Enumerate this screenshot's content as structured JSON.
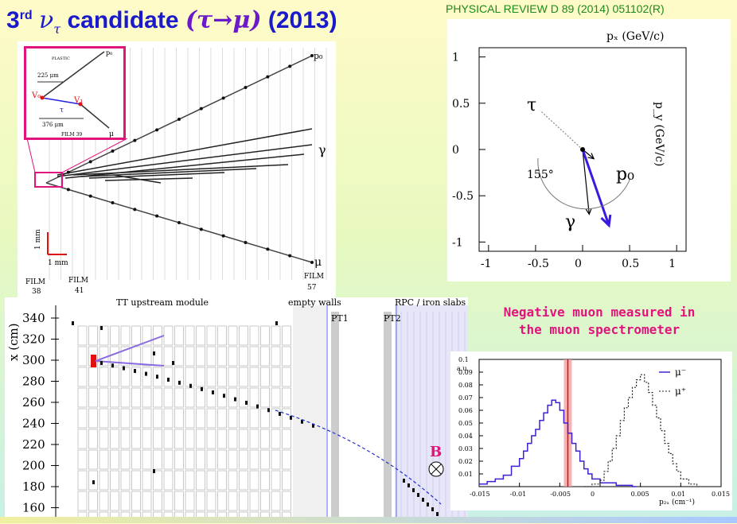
{
  "title": {
    "prefix": "3",
    "sup": "rd",
    "nu": "ν",
    "tau_sub": "τ",
    "word": " candidate ",
    "decay": "(τ→μ)",
    "year": " (2013)"
  },
  "reference": "PHYSICAL REVIEW D 89 (2014) 051102(R)",
  "event_display": {
    "labels": {
      "p0": "p₀",
      "gamma": "γ",
      "mu": "μ",
      "scale": "1 mm",
      "film38": [
        "FILM",
        "38"
      ],
      "film41": [
        "FILM",
        "41"
      ],
      "film57": [
        "FILM",
        "57"
      ]
    },
    "inset": {
      "plastic": "PLASTIC",
      "p0": "p₀",
      "v0": "V₀",
      "v1": "V₁",
      "tau": "τ",
      "d1": "225 μm",
      "d2": "376 μm",
      "mu": "μ",
      "film": "FILM 39"
    }
  },
  "momentum_plot": {
    "xlabel": "pₓ (GeV/c)",
    "ylabel": "p_y (GeV/c)",
    "xticks": [
      "-1",
      "-0.5",
      "0",
      "0.5",
      "1"
    ],
    "yticks": [
      "1",
      "0.5",
      "0",
      "-0.5",
      "-1"
    ],
    "labels": {
      "tau": "τ",
      "p0": "p₀",
      "gamma": "γ",
      "angle": "155°"
    },
    "colors": {
      "mu": "#3a1ae0"
    }
  },
  "detector": {
    "ylabel": "x (cm)",
    "yticks": [
      "340",
      "320",
      "300",
      "280",
      "260",
      "240",
      "220",
      "200",
      "180",
      "160"
    ],
    "regions": [
      "TT upstream module",
      "empty walls",
      "RPC / iron slabs"
    ],
    "markers": [
      "PT1",
      "PT2"
    ],
    "field": "B"
  },
  "spectrometer_caption": [
    "Negative muon measured in",
    "the muon spectrometer"
  ],
  "histogram": {
    "ylabel": "a.u.",
    "yticks": [
      "0.1",
      "0.09",
      "0.08",
      "0.07",
      "0.06",
      "0.05",
      "0.04",
      "0.03",
      "0.02",
      "0.01"
    ],
    "xticks": [
      "-0.015",
      "-0.01",
      "-0.005",
      "0",
      "0.005",
      "0.01",
      "0.015"
    ],
    "xlabel": "p₂ₓ (cm⁻¹)",
    "legend": [
      "μ⁻",
      "μ⁺"
    ]
  },
  "chart_data": [
    {
      "type": "line",
      "title": "",
      "xlabel": "pₓ (GeV/c)",
      "ylabel": "p_y (GeV/c)",
      "xlim": [
        -1.1,
        1.1
      ],
      "ylim": [
        -1.1,
        1.1
      ],
      "series": [
        {
          "name": "τ",
          "x": [
            0,
            -0.45
          ],
          "y": [
            0,
            0.42
          ]
        },
        {
          "name": "p₀",
          "x": [
            0,
            0.12
          ],
          "y": [
            0,
            -0.1
          ]
        },
        {
          "name": "γ",
          "x": [
            0,
            0.07
          ],
          "y": [
            0,
            -0.7
          ]
        },
        {
          "name": "μ",
          "x": [
            0,
            0.28
          ],
          "y": [
            0,
            -0.82
          ]
        }
      ],
      "annotations": [
        "155°"
      ]
    },
    {
      "type": "line",
      "xlabel": "p₂ₓ (cm⁻¹)",
      "ylabel": "a.u.",
      "xlim": [
        -0.015,
        0.015
      ],
      "ylim": [
        0,
        0.1
      ],
      "series": [
        {
          "name": "μ⁻",
          "x": [
            -0.015,
            -0.014,
            -0.013,
            -0.012,
            -0.011,
            -0.01,
            -0.0095,
            -0.009,
            -0.0085,
            -0.008,
            -0.0075,
            -0.007,
            -0.0065,
            -0.006,
            -0.0055,
            -0.005,
            -0.0045,
            -0.004,
            -0.0035,
            -0.003,
            -0.0025,
            -0.002,
            -0.0015,
            -0.001,
            0,
            0.002,
            0.004
          ],
          "y": [
            0.002,
            0.004,
            0.006,
            0.009,
            0.016,
            0.022,
            0.028,
            0.034,
            0.04,
            0.045,
            0.052,
            0.058,
            0.064,
            0.068,
            0.066,
            0.06,
            0.05,
            0.042,
            0.034,
            0.028,
            0.02,
            0.014,
            0.01,
            0.006,
            0.003,
            0.001,
            0.0
          ]
        },
        {
          "name": "μ⁺",
          "x": [
            -0.002,
            -0.001,
            0,
            0.0005,
            0.001,
            0.0015,
            0.002,
            0.0025,
            0.003,
            0.0035,
            0.004,
            0.0045,
            0.005,
            0.0055,
            0.006,
            0.0065,
            0.007,
            0.0075,
            0.008,
            0.0085,
            0.009,
            0.0095,
            0.01,
            0.011,
            0.012
          ],
          "y": [
            0.0,
            0.002,
            0.005,
            0.012,
            0.02,
            0.03,
            0.04,
            0.052,
            0.062,
            0.07,
            0.078,
            0.084,
            0.088,
            0.082,
            0.074,
            0.064,
            0.054,
            0.044,
            0.034,
            0.026,
            0.018,
            0.012,
            0.006,
            0.002,
            0.0
          ]
        }
      ],
      "marker_x": -0.004
    }
  ]
}
